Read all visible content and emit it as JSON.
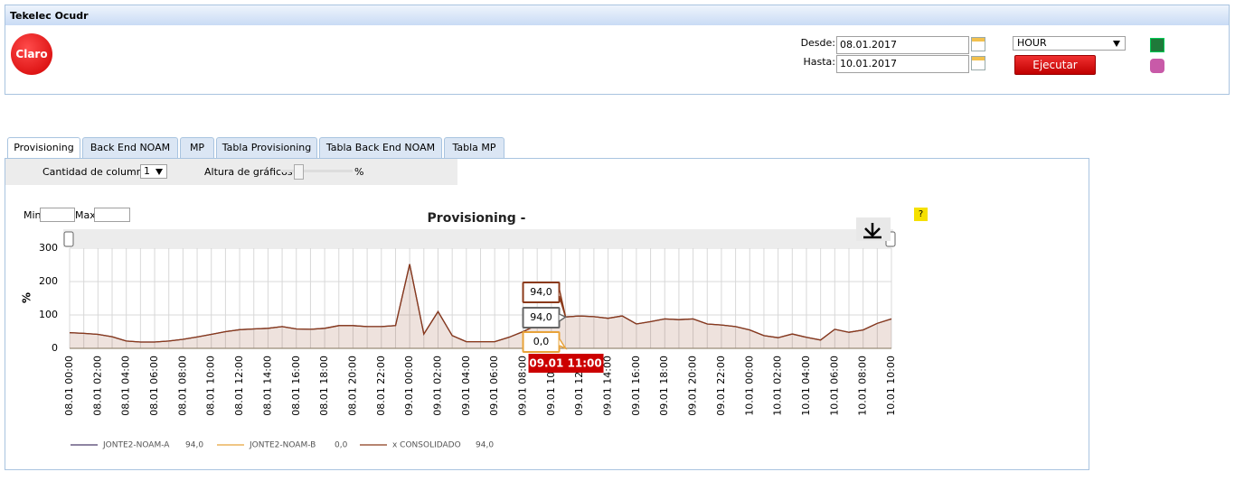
{
  "header": {
    "title": "Tekelec Ocudr",
    "logo": "Claro",
    "desde_label": "Desde:",
    "desde": "08.01.2017",
    "hasta_label": "Hasta:",
    "hasta": "10.01.2017",
    "interval": "HOUR",
    "button": "Ejecutar"
  },
  "tabs": [
    "Provisioning",
    "Back End NOAM",
    "MP",
    "Tabla Provisioning",
    "Tabla Back End NOAM",
    "Tabla MP"
  ],
  "controls": {
    "columns_label": "Cantidad de columnas",
    "columns": "1",
    "height_label": "Altura de gráficos",
    "height_unit": "%",
    "min_label": "Min",
    "max_label": "Max",
    "help": "?"
  },
  "chart_data": {
    "type": "area",
    "title": "Provisioning -",
    "y_label": "%",
    "categories": [
      "08.01 00:00",
      null,
      "08.01 02:00",
      null,
      "08.01 04:00",
      null,
      "08.01 06:00",
      null,
      "08.01 08:00",
      null,
      "08.01 10:00",
      null,
      "08.01 12:00",
      null,
      "08.01 14:00",
      null,
      "08.01 16:00",
      null,
      "08.01 18:00",
      null,
      "08.01 20:00",
      null,
      "08.01 22:00",
      null,
      "09.01 00:00",
      null,
      "09.01 02:00",
      null,
      "09.01 04:00",
      null,
      "09.01 06:00",
      null,
      "09.01 08:00",
      null,
      "09.01 10:00",
      null,
      "09.01 12:00",
      null,
      "09.01 14:00",
      null,
      "09.01 16:00",
      null,
      "09.01 18:00",
      null,
      "09.01 20:00",
      null,
      "09.01 22:00",
      null,
      "10.01 00:00",
      null,
      "10.01 02:00",
      null,
      "10.01 04:00",
      null,
      "10.01 06:00",
      null,
      "10.01 08:00",
      null,
      "10.01 10:00"
    ],
    "series": [
      {
        "name": "JONTE2-NOAM-A",
        "color": "#4b3a6b",
        "legend_value": "94,0",
        "values": [
          47,
          45,
          42,
          35,
          22,
          19,
          19,
          22,
          27,
          34,
          42,
          50,
          56,
          58,
          60,
          65,
          58,
          57,
          60,
          68,
          68,
          65,
          65,
          68,
          252,
          43,
          110,
          38,
          20,
          20,
          20,
          33,
          50,
          70,
          90,
          94,
          97,
          95,
          90,
          97,
          73,
          80,
          88,
          86,
          88,
          73,
          70,
          65,
          55,
          38,
          32,
          43,
          33,
          25,
          57,
          48,
          55,
          75,
          88
        ]
      },
      {
        "name": "JONTE2-NOAM-B",
        "color": "#e8a33a",
        "legend_value": "0,0",
        "values": [
          0,
          0,
          0,
          0,
          0,
          0,
          0,
          0,
          0,
          0,
          0,
          0,
          0,
          0,
          0,
          0,
          0,
          0,
          0,
          0,
          0,
          0,
          0,
          0,
          0,
          0,
          0,
          0,
          0,
          0,
          0,
          0,
          0,
          0,
          0,
          0,
          0,
          0,
          0,
          0,
          0,
          0,
          0,
          0,
          0,
          0,
          0,
          0,
          0,
          0,
          0,
          0,
          0,
          0,
          0,
          0,
          0,
          0,
          0
        ]
      },
      {
        "name": "x CONSOLIDADO",
        "color": "#8b3a1a",
        "legend_value": "94,0",
        "area": true,
        "values": [
          47,
          45,
          42,
          35,
          22,
          19,
          19,
          22,
          27,
          34,
          42,
          50,
          56,
          58,
          60,
          65,
          58,
          57,
          60,
          68,
          68,
          65,
          65,
          68,
          252,
          43,
          110,
          38,
          20,
          20,
          20,
          33,
          50,
          70,
          90,
          94,
          97,
          95,
          90,
          97,
          73,
          80,
          88,
          86,
          88,
          73,
          70,
          65,
          55,
          38,
          32,
          43,
          33,
          25,
          57,
          48,
          55,
          75,
          88
        ]
      }
    ],
    "ylim": [
      0,
      300
    ],
    "yticks": [
      0,
      100,
      200,
      300
    ],
    "grid": true,
    "tooltip": {
      "x_label": "09.01 11:00",
      "items": [
        "94,0",
        "94,0",
        "0,0"
      ]
    }
  }
}
